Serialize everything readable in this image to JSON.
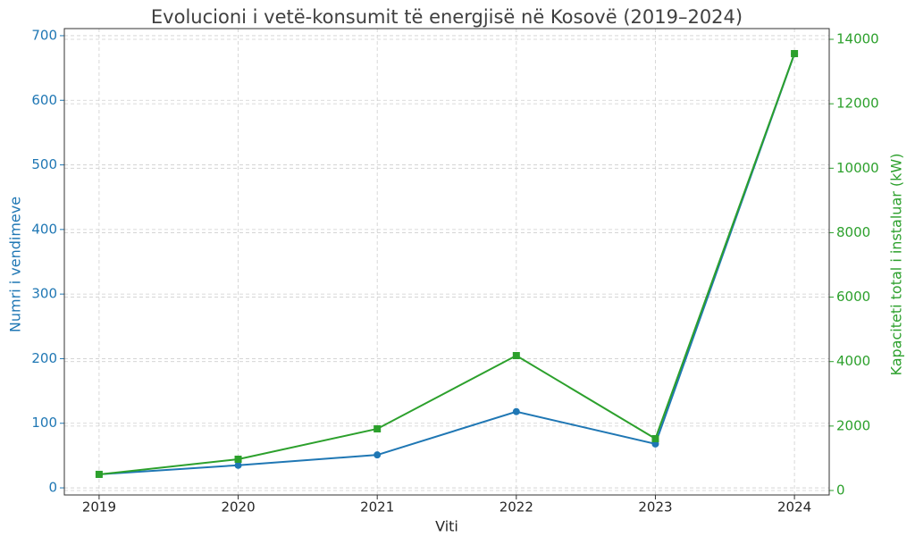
{
  "chart_data": {
    "type": "line",
    "title": "Evolucioni i vetë-konsumit të energjisë në Kosovë (2019–2024)",
    "x_label": "Viti",
    "y_label": "Numri i vendimeve",
    "y2_label": "Kapaciteti total i instaluar (kW)",
    "x": [
      2019,
      2020,
      2021,
      2022,
      2023,
      2024
    ],
    "xlim": [
      2018.75,
      2024.25
    ],
    "xticks": [
      2019,
      2020,
      2021,
      2022,
      2023,
      2024
    ],
    "ylim": [
      -11,
      711
    ],
    "yticks": [
      0,
      100,
      200,
      300,
      400,
      500,
      600,
      700
    ],
    "y2lim": [
      -139,
      14333
    ],
    "y2ticks": [
      0,
      2000,
      4000,
      6000,
      8000,
      10000,
      12000,
      14000
    ],
    "grid": true,
    "series": [
      {
        "name": "Numri i vendimeve",
        "color": "#1f77b4",
        "marker": "circle",
        "values": [
          21,
          35,
          51,
          118,
          68,
          672
        ]
      },
      {
        "name": "Kapaciteti total i instaluar (kW)",
        "color": "#2ca02c",
        "marker": "square",
        "axis": "y2",
        "values": [
          500,
          970,
          1913,
          4186,
          1608,
          13557
        ]
      }
    ]
  }
}
